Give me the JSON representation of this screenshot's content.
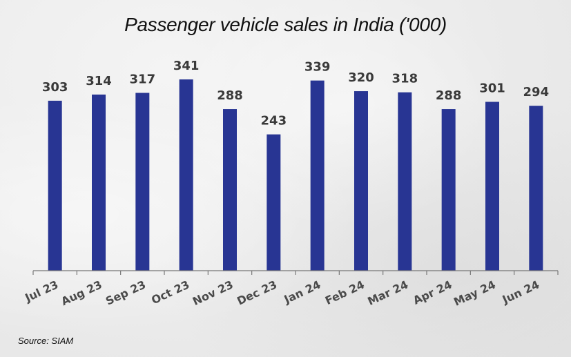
{
  "chart_data": {
    "type": "bar",
    "title": "Passenger vehicle sales in India ('000)",
    "categories": [
      "Jul 23",
      "Aug 23",
      "Sep 23",
      "Oct 23",
      "Nov 23",
      "Dec 23",
      "Jan 24",
      "Feb 24",
      "Mar 24",
      "Apr 24",
      "May 24",
      "Jun 24"
    ],
    "values": [
      303,
      314,
      317,
      341,
      288,
      243,
      339,
      320,
      318,
      288,
      301,
      294
    ],
    "xlabel": "",
    "ylabel": "",
    "ylim": [
      0,
      341
    ],
    "grid": false,
    "legend": "none",
    "data_labels": true,
    "bar_color": "#283593",
    "source": "Source: SIAM"
  }
}
